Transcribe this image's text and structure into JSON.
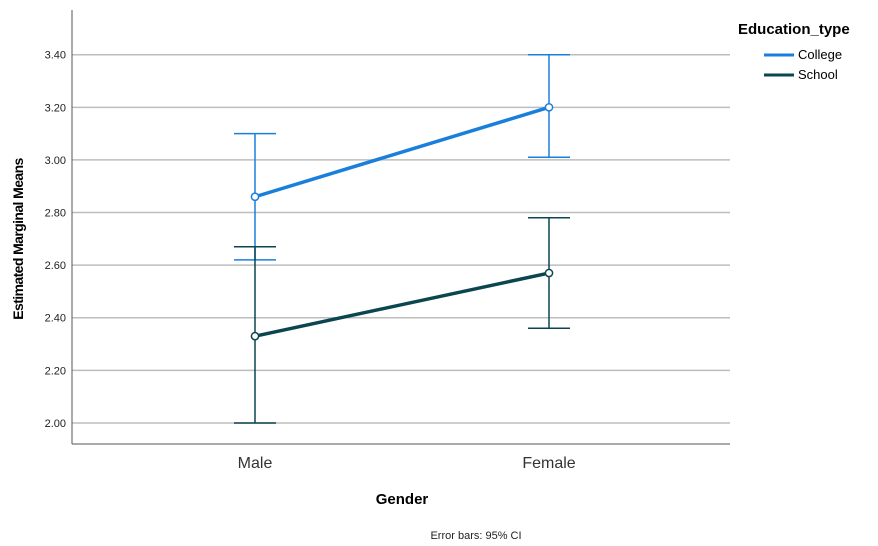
{
  "chart_data": {
    "type": "line",
    "xlabel": "Gender",
    "ylabel": "Estimated Marginal Means",
    "categories": [
      "Male",
      "Female"
    ],
    "ylim": [
      1.92,
      3.57
    ],
    "yticks": [
      2.0,
      2.2,
      2.4,
      2.6,
      2.8,
      3.0,
      3.2,
      3.4
    ],
    "ytick_labels": [
      "2.00",
      "2.20",
      "2.40",
      "2.60",
      "2.80",
      "3.00",
      "3.20",
      "3.40"
    ],
    "grid": "horizontal",
    "legend": {
      "title": "Education_type",
      "placement": "top-right"
    },
    "series": [
      {
        "name": "College",
        "color": "#1a7fdc",
        "values": [
          2.86,
          3.2
        ],
        "ci_low": [
          2.62,
          3.01
        ],
        "ci_high": [
          3.1,
          3.4
        ]
      },
      {
        "name": "School",
        "color": "#0b4650",
        "values": [
          2.33,
          2.57
        ],
        "ci_low": [
          2.0,
          2.36
        ],
        "ci_high": [
          2.67,
          2.78
        ]
      }
    ],
    "footnote": "Error bars: 95% CI"
  }
}
